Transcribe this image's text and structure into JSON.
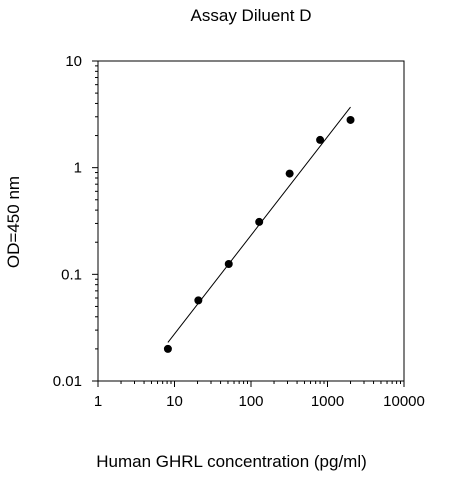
{
  "chart_data": {
    "type": "scatter",
    "title": "Assay Diluent D",
    "xlabel": "Human GHRL concentration (pg/ml)",
    "ylabel": "OD=450 nm",
    "x_scale": "log",
    "y_scale": "log",
    "xlim": [
      1,
      10000
    ],
    "ylim": [
      0.01,
      10
    ],
    "x_ticks": [
      1,
      10,
      100,
      1000,
      10000
    ],
    "x_tick_labels": [
      "1",
      "10",
      "100",
      "1000",
      "10000"
    ],
    "y_ticks": [
      0.01,
      0.1,
      1,
      10
    ],
    "y_tick_labels": [
      "0.01",
      "0.1",
      "1",
      "10"
    ],
    "grid": false,
    "legend": "none",
    "series": [
      {
        "points": [
          {
            "x": 8.2,
            "y": 0.02
          },
          {
            "x": 20.5,
            "y": 0.057
          },
          {
            "x": 51.2,
            "y": 0.125
          },
          {
            "x": 128,
            "y": 0.31
          },
          {
            "x": 320,
            "y": 0.88
          },
          {
            "x": 800,
            "y": 1.82
          },
          {
            "x": 2000,
            "y": 2.8
          }
        ],
        "fit_line": {
          "x": [
            8.2,
            2000
          ],
          "y": [
            0.023,
            3.7
          ]
        },
        "marker_color": "#000000",
        "line_color": "#000000"
      }
    ]
  }
}
